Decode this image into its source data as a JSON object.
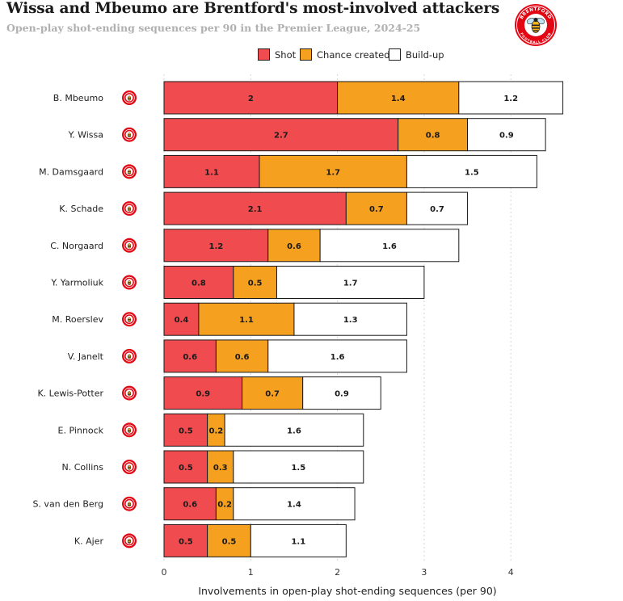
{
  "header": {
    "title": "Wissa and Mbeumo are Brentford's most-involved attackers",
    "subtitle": "Open-play shot-ending sequences per 90 in the Premier League, 2024-25"
  },
  "crest": {
    "top_text": "BRENTFORD",
    "bottom_text": "FOOTBALL CLUB"
  },
  "colors": {
    "shot": "#f04b4f",
    "chance": "#f6a020",
    "buildup": "#ffffff",
    "crest_red": "#e30613",
    "bee": "#f6b31b"
  },
  "chart_data": {
    "type": "bar",
    "orientation": "horizontal",
    "stacked": true,
    "title": "Wissa and Mbeumo are Brentford's most-involved attackers",
    "subtitle": "Open-play shot-ending sequences per 90 in the Premier League, 2024-25",
    "xlabel": "Involvements in open-play shot-ending sequences (per 90)",
    "ylabel": "",
    "xlim": [
      0,
      4.6
    ],
    "xticks": [
      0,
      1,
      2,
      3,
      4
    ],
    "legend_position": "top",
    "categories": [
      "B. Mbeumo",
      "Y. Wissa",
      "M. Damsgaard",
      "K. Schade",
      "C. Norgaard",
      "Y. Yarmoliuk",
      "M. Roerslev",
      "V. Janelt",
      "K. Lewis-Potter",
      "E. Pinnock",
      "N. Collins",
      "S. van den Berg",
      "K. Ajer"
    ],
    "series": [
      {
        "name": "Shot",
        "values": [
          2,
          2.7,
          1.1,
          2.1,
          1.2,
          0.8,
          0.4,
          0.6,
          0.9,
          0.5,
          0.5,
          0.6,
          0.5
        ]
      },
      {
        "name": "Chance created",
        "values": [
          1.4,
          0.8,
          1.7,
          0.7,
          0.6,
          0.5,
          1.1,
          0.6,
          0.7,
          0.2,
          0.3,
          0.2,
          0.5
        ]
      },
      {
        "name": "Build-up",
        "values": [
          1.2,
          0.9,
          1.5,
          0.7,
          1.6,
          1.7,
          1.3,
          1.6,
          0.9,
          1.6,
          1.5,
          1.4,
          1.1
        ]
      }
    ]
  }
}
